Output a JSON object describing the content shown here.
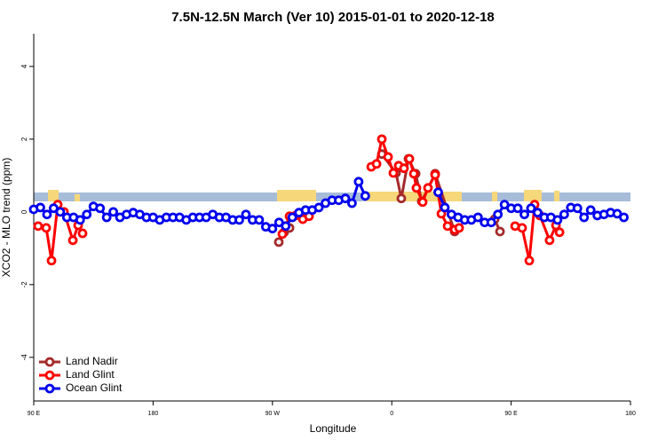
{
  "chart_data": {
    "type": "line",
    "title": "7.5N-12.5N March (Ver 10)   2015-01-01 to 2020-12-18",
    "x_label": "Longitude",
    "y_label": "XCO2 - MLO trend (ppm)",
    "xlim": [
      90,
      540
    ],
    "ylim": [
      -5.2,
      4.9
    ],
    "xticks": [
      {
        "value": 90,
        "label": "90 E"
      },
      180,
      {
        "value": 270,
        "label": "90 W"
      },
      {
        "value": 360,
        "label": "0"
      },
      {
        "value": 450,
        "label": "90 E"
      },
      {
        "value": 540,
        "label": "180"
      }
    ],
    "yticks": [
      -4,
      -2,
      0,
      2,
      4
    ],
    "legend": "bottom-left",
    "series": [
      {
        "name": "Land Nadir",
        "color": "#a52a2a",
        "x": [
          274.8,
          278.8,
          282.9,
          300,
          352.5,
          363.2,
          367.2,
          372.6,
          378,
          382.6,
          392.7,
          407.4,
          430,
          437.6,
          441.6
        ],
        "values": [
          -0.83,
          -0.56,
          -0.44,
          null,
          1.59,
          1.07,
          0.37,
          1.46,
          1.05,
          0.29,
          1.05,
          -0.54,
          null,
          -0.2,
          -0.54
        ]
      },
      {
        "name": "Land Glint",
        "color": "#ff0000",
        "x": [
          93.3,
          99.4,
          103.4,
          108.1,
          112.8,
          119.5,
          123.5,
          126.8,
          200,
          277.5,
          282.9,
          287.5,
          292.9,
          297.6,
          320,
          344.5,
          348.5,
          352.5,
          357.2,
          361.2,
          365.2,
          369.2,
          373.3,
          376.6,
          378.6,
          383.3,
          387.3,
          392.7,
          397.4,
          402.1,
          407.4,
          410.8,
          430,
          453,
          458.3,
          463.7,
          467.7,
          471.7,
          479,
          483.8,
          486.5
        ],
        "values": [
          -0.39,
          -0.44,
          -1.34,
          0.2,
          0,
          -0.78,
          -0.37,
          -0.59,
          null,
          -0.61,
          -0.12,
          -0.1,
          -0.2,
          -0.12,
          null,
          1.24,
          1.32,
          2.0,
          1.51,
          1.07,
          1.27,
          1.2,
          1.46,
          1.05,
          0.66,
          0.27,
          0.66,
          1.02,
          -0.05,
          -0.39,
          -0.49,
          -0.44,
          null,
          -0.39,
          -0.44,
          -1.34,
          0.2,
          -0.1,
          -0.78,
          -0.37,
          -0.56
        ]
      },
      {
        "name": "Ocean Glint",
        "color": "#0000ee",
        "x": [
          90,
          95,
          100,
          105,
          110,
          115,
          120,
          125,
          130,
          135,
          140,
          145,
          150,
          155,
          160,
          165,
          170,
          175,
          180,
          185,
          190,
          195,
          200,
          205,
          210,
          215,
          220,
          225,
          230,
          235,
          240,
          245,
          250,
          255,
          260,
          265,
          270,
          275,
          280,
          285,
          290,
          295,
          300,
          305,
          310,
          315,
          320,
          325,
          330,
          335,
          340,
          345,
          350,
          355,
          360,
          365,
          370,
          375,
          380,
          385,
          390,
          395,
          400,
          405,
          410,
          415,
          420,
          425,
          430,
          435,
          440,
          445,
          450,
          455,
          460,
          465,
          470,
          475,
          480,
          485,
          490,
          495,
          500,
          505,
          510,
          515,
          520,
          525,
          530,
          535
        ],
        "values": [
          0.07,
          0.12,
          -0.07,
          0.1,
          0,
          -0.15,
          -0.15,
          -0.22,
          -0.07,
          0.15,
          0.1,
          -0.15,
          0,
          -0.15,
          -0.07,
          -0.02,
          -0.07,
          -0.15,
          -0.15,
          -0.22,
          -0.15,
          -0.15,
          -0.15,
          -0.22,
          -0.15,
          -0.15,
          -0.15,
          -0.07,
          -0.15,
          -0.15,
          -0.22,
          -0.22,
          -0.07,
          -0.22,
          -0.22,
          -0.41,
          -0.46,
          -0.29,
          -0.39,
          -0.15,
          -0.02,
          0.05,
          0.05,
          0.12,
          0.24,
          0.32,
          0.32,
          0.37,
          0.24,
          0.83,
          0.44,
          null,
          null,
          null,
          null,
          null,
          null,
          null,
          null,
          null,
          null,
          0.54,
          0.12,
          -0.07,
          -0.15,
          -0.22,
          -0.22,
          -0.15,
          -0.29,
          -0.29,
          -0.07,
          0.2,
          0.1,
          0.1,
          -0.07,
          0.1,
          -0.02,
          -0.15,
          -0.15,
          -0.22,
          -0.07,
          0.12,
          0.1,
          -0.15,
          0.05,
          -0.1,
          -0.07,
          -0.02,
          -0.05,
          -0.15
        ]
      }
    ]
  }
}
